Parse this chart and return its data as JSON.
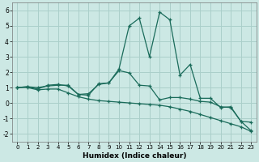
{
  "xlabel": "Humidex (Indice chaleur)",
  "background_color": "#cce8e4",
  "grid_color": "#aacfca",
  "line_color": "#1a6b5a",
  "xlim": [
    -0.5,
    23.5
  ],
  "ylim": [
    -2.5,
    6.5
  ],
  "xticks": [
    0,
    1,
    2,
    3,
    4,
    5,
    6,
    7,
    8,
    9,
    10,
    11,
    12,
    13,
    14,
    15,
    16,
    17,
    18,
    19,
    20,
    21,
    22,
    23
  ],
  "yticks": [
    -2,
    -1,
    0,
    1,
    2,
    3,
    4,
    5,
    6
  ],
  "series1_x": [
    0,
    1,
    2,
    3,
    4,
    5,
    6,
    7,
    8,
    9,
    10,
    11,
    12,
    13,
    14,
    15,
    16,
    17,
    18,
    19,
    20,
    21,
    22,
    23
  ],
  "series1_y": [
    1.0,
    1.05,
    0.9,
    1.15,
    1.2,
    1.1,
    0.55,
    0.6,
    1.2,
    1.3,
    2.2,
    5.0,
    5.5,
    3.0,
    5.9,
    5.4,
    1.8,
    2.5,
    0.3,
    0.3,
    -0.3,
    -0.25,
    -1.2,
    -1.25
  ],
  "series2_x": [
    0,
    1,
    2,
    3,
    4,
    5,
    6,
    7,
    8,
    9,
    10,
    11,
    12,
    13,
    14,
    15,
    16,
    17,
    18,
    19,
    20,
    21,
    22,
    23
  ],
  "series2_y": [
    1.0,
    1.0,
    0.85,
    0.9,
    0.9,
    0.65,
    0.4,
    0.25,
    0.15,
    0.1,
    0.05,
    0.0,
    -0.05,
    -0.1,
    -0.15,
    -0.25,
    -0.4,
    -0.55,
    -0.75,
    -0.95,
    -1.15,
    -1.35,
    -1.55,
    -1.85
  ],
  "series3_x": [
    0,
    1,
    2,
    3,
    4,
    5,
    6,
    7,
    8,
    9,
    10,
    11,
    12,
    13,
    14,
    15,
    16,
    17,
    18,
    19,
    20,
    21,
    22,
    23
  ],
  "series3_y": [
    1.0,
    1.05,
    1.0,
    1.1,
    1.15,
    1.15,
    0.55,
    0.5,
    1.25,
    1.3,
    2.1,
    1.95,
    1.15,
    1.1,
    0.2,
    0.35,
    0.35,
    0.25,
    0.1,
    0.05,
    -0.25,
    -0.3,
    -1.2,
    -1.8
  ]
}
